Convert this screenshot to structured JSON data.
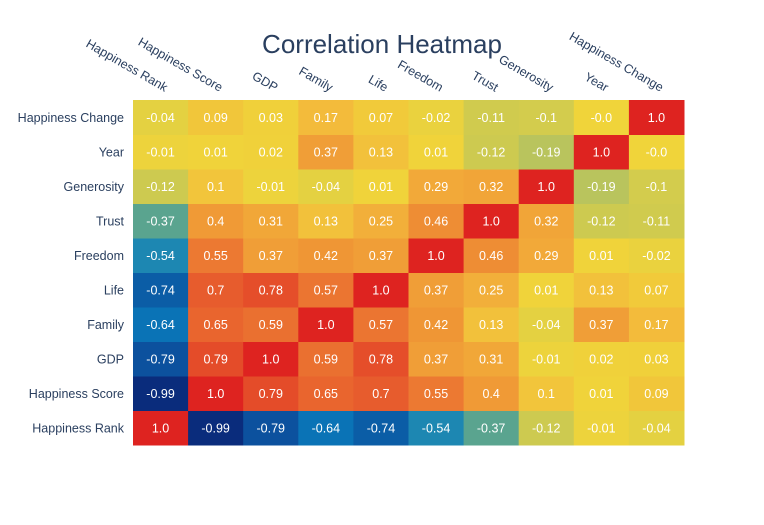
{
  "chart_data": {
    "type": "heatmap",
    "title": "Correlation Heatmap",
    "x_labels": [
      "Happiness Rank",
      "Happiness Score",
      "GDP",
      "Family",
      "Life",
      "Freedom",
      "Trust",
      "Generosity",
      "Year",
      "Happiness Change"
    ],
    "y_labels": [
      "Happiness Rank",
      "Happiness Score",
      "GDP",
      "Family",
      "Life",
      "Freedom",
      "Trust",
      "Generosity",
      "Year",
      "Happiness Change"
    ],
    "z": [
      [
        1.0,
        -0.99,
        -0.79,
        -0.64,
        -0.74,
        -0.54,
        -0.37,
        -0.12,
        -0.01,
        -0.04
      ],
      [
        -0.99,
        1.0,
        0.79,
        0.65,
        0.7,
        0.55,
        0.4,
        0.1,
        0.01,
        0.09
      ],
      [
        -0.79,
        0.79,
        1.0,
        0.59,
        0.78,
        0.37,
        0.31,
        -0.01,
        0.02,
        0.03
      ],
      [
        -0.64,
        0.65,
        0.59,
        1.0,
        0.57,
        0.42,
        0.13,
        -0.04,
        0.37,
        0.17
      ],
      [
        -0.74,
        0.7,
        0.78,
        0.57,
        1.0,
        0.37,
        0.25,
        0.01,
        0.13,
        0.07
      ],
      [
        -0.54,
        0.55,
        0.37,
        0.42,
        0.37,
        1.0,
        0.46,
        0.29,
        0.01,
        -0.02
      ],
      [
        -0.37,
        0.4,
        0.31,
        0.13,
        0.25,
        0.46,
        1.0,
        0.32,
        -0.12,
        -0.11
      ],
      [
        -0.12,
        0.1,
        -0.01,
        -0.04,
        0.01,
        0.29,
        0.32,
        1.0,
        -0.19,
        -0.1
      ],
      [
        -0.01,
        0.01,
        0.02,
        0.37,
        0.13,
        0.01,
        -0.12,
        -0.19,
        1.0,
        -0.0
      ],
      [
        -0.04,
        0.09,
        0.03,
        0.17,
        0.07,
        -0.02,
        -0.11,
        -0.1,
        -0.0,
        1.0
      ]
    ],
    "text": [
      [
        "1.0",
        "-0.99",
        "-0.79",
        "-0.64",
        "-0.74",
        "-0.54",
        "-0.37",
        "-0.12",
        "-0.01",
        "-0.04"
      ],
      [
        "-0.99",
        "1.0",
        "0.79",
        "0.65",
        "0.7",
        "0.55",
        "0.4",
        "0.1",
        "0.01",
        "0.09"
      ],
      [
        "-0.79",
        "0.79",
        "1.0",
        "0.59",
        "0.78",
        "0.37",
        "0.31",
        "-0.01",
        "0.02",
        "0.03"
      ],
      [
        "-0.64",
        "0.65",
        "0.59",
        "1.0",
        "0.57",
        "0.42",
        "0.13",
        "-0.04",
        "0.37",
        "0.17"
      ],
      [
        "-0.74",
        "0.7",
        "0.78",
        "0.57",
        "1.0",
        "0.37",
        "0.25",
        "0.01",
        "0.13",
        "0.07"
      ],
      [
        "-0.54",
        "0.55",
        "0.37",
        "0.42",
        "0.37",
        "1.0",
        "0.46",
        "0.29",
        "0.01",
        "-0.02"
      ],
      [
        "-0.37",
        "0.4",
        "0.31",
        "0.13",
        "0.25",
        "0.46",
        "1.0",
        "0.32",
        "-0.12",
        "-0.11"
      ],
      [
        "-0.12",
        "0.1",
        "-0.01",
        "-0.04",
        "0.01",
        "0.29",
        "0.32",
        "1.0",
        "-0.19",
        "-0.1"
      ],
      [
        "-0.01",
        "0.01",
        "0.02",
        "0.37",
        "0.13",
        "0.01",
        "-0.12",
        "-0.19",
        "1.0",
        "-0.0"
      ],
      [
        "-0.04",
        "0.09",
        "0.03",
        "0.17",
        "0.07",
        "-0.02",
        "-0.11",
        "-0.1",
        "-0.0",
        "1.0"
      ]
    ],
    "zlim": [
      -1.0,
      1.0
    ],
    "colorscale": [
      [
        0.0,
        "#0a2a7a"
      ],
      [
        0.1,
        "#0c4f9c"
      ],
      [
        0.2,
        "#0a7cbd"
      ],
      [
        0.3,
        "#4a9f98"
      ],
      [
        0.4,
        "#b6c35f"
      ],
      [
        0.5,
        "#f0d43a"
      ],
      [
        0.6,
        "#f3b63b"
      ],
      [
        0.7,
        "#f09a36"
      ],
      [
        0.8,
        "#ea6e30"
      ],
      [
        0.9,
        "#e44a29"
      ],
      [
        1.0,
        "#de2320"
      ]
    ],
    "colorbar": false
  }
}
